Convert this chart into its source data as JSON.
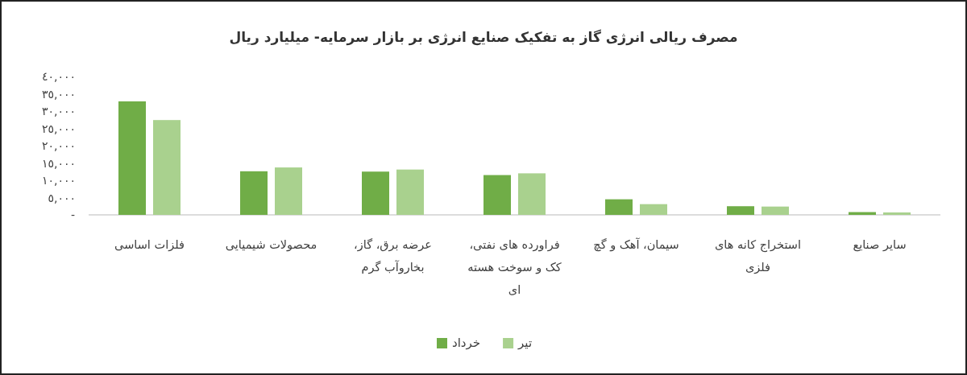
{
  "chart_data": {
    "type": "bar",
    "title": "مصرف ریالی انرژی گاز به تفکیک صنایع انرژی بر بازار سرمایه- میلیارد ریال",
    "categories": [
      "فلزات اساسی",
      "محصولات شیمیایی",
      "عرضه برق، گاز، بخاروآب گرم",
      "فراورده های نفتی، کک و سوخت هسته ای",
      "سیمان، آهک و گچ",
      "استخراج کانه های فلزی",
      "سایر صنایع"
    ],
    "series": [
      {
        "name": "خرداد",
        "color": "#70ad47",
        "values": [
          32800,
          12600,
          12500,
          11500,
          4500,
          2500,
          800
        ]
      },
      {
        "name": "تیر",
        "color": "#a9d18e",
        "values": [
          27400,
          13700,
          13100,
          12000,
          3100,
          2400,
          700
        ]
      }
    ],
    "ylim": [
      0,
      40000
    ],
    "yticks": [
      {
        "value": 0,
        "label": "-"
      },
      {
        "value": 5000,
        "label": "٥,٠٠٠"
      },
      {
        "value": 10000,
        "label": "١٠,٠٠٠"
      },
      {
        "value": 15000,
        "label": "١٥,٠٠٠"
      },
      {
        "value": 20000,
        "label": "٢٠,٠٠٠"
      },
      {
        "value": 25000,
        "label": "٢٥,٠٠٠"
      },
      {
        "value": 30000,
        "label": "٣٠,٠٠٠"
      },
      {
        "value": 35000,
        "label": "٣٥,٠٠٠"
      },
      {
        "value": 40000,
        "label": "٤٠,٠٠٠"
      }
    ],
    "legend": "bottom"
  }
}
